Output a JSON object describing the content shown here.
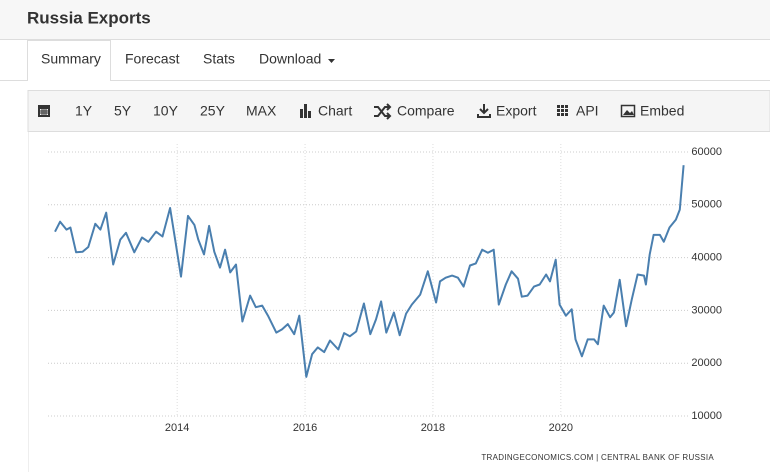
{
  "header": {
    "title": "Russia Exports"
  },
  "tabs": [
    "Summary",
    "Forecast",
    "Stats",
    "Download"
  ],
  "toolbar": [
    "1Y",
    "5Y",
    "10Y",
    "25Y",
    "MAX",
    "Chart",
    "Compare",
    "Export",
    "API",
    "Embed"
  ],
  "chart_data": {
    "type": "line",
    "source": "TRADINGECONOMICS.COM  |  CENTRAL BANK OF RUSSIA",
    "x": [
      2012.09,
      2012.17,
      2012.27,
      2012.33,
      2012.42,
      2012.52,
      2012.61,
      2012.72,
      2012.8,
      2012.89,
      2013.0,
      2013.11,
      2013.2,
      2013.33,
      2013.45,
      2013.55,
      2013.67,
      2013.77,
      2013.89,
      2013.98,
      2014.06,
      2014.17,
      2014.27,
      2014.33,
      2014.42,
      2014.5,
      2014.58,
      2014.67,
      2014.75,
      2014.83,
      2014.92,
      2015.02,
      2015.14,
      2015.23,
      2015.33,
      2015.42,
      2015.55,
      2015.64,
      2015.73,
      2015.83,
      2015.91,
      2016.02,
      2016.11,
      2016.2,
      2016.3,
      2016.39,
      2016.52,
      2016.61,
      2016.7,
      2016.8,
      2016.92,
      2017.02,
      2017.11,
      2017.19,
      2017.27,
      2017.39,
      2017.48,
      2017.58,
      2017.67,
      2017.8,
      2017.92,
      2018.05,
      2018.11,
      2018.2,
      2018.3,
      2018.39,
      2018.48,
      2018.58,
      2018.67,
      2018.77,
      2018.86,
      2018.95,
      2019.03,
      2019.14,
      2019.23,
      2019.33,
      2019.39,
      2019.48,
      2019.58,
      2019.67,
      2019.77,
      2019.83,
      2019.92,
      2019.98,
      2020.08,
      2020.17,
      2020.23,
      2020.33,
      2020.42,
      2020.52,
      2020.58,
      2020.67,
      2020.77,
      2020.83,
      2020.92,
      2021.02,
      2021.11,
      2021.2,
      2021.3,
      2021.33,
      2021.39,
      2021.45,
      2021.55,
      2021.61,
      2021.7,
      2021.8,
      2021.86,
      2021.92
    ],
    "series": [
      {
        "name": "Exports",
        "color": "#4a7faf",
        "values": [
          44900,
          46800,
          45300,
          45700,
          41000,
          41100,
          42000,
          46400,
          45300,
          48500,
          38700,
          43400,
          44700,
          41000,
          43800,
          43000,
          44900,
          44000,
          49400,
          42500,
          36400,
          47900,
          46200,
          43400,
          40600,
          46000,
          41100,
          38100,
          41500,
          37200,
          38700,
          27900,
          32800,
          30600,
          30900,
          29000,
          25800,
          26400,
          27400,
          25500,
          29000,
          17400,
          21700,
          23000,
          22100,
          24300,
          22600,
          25700,
          25100,
          26000,
          31300,
          25500,
          28300,
          31700,
          25800,
          29600,
          25300,
          29400,
          31100,
          33000,
          37400,
          31500,
          35500,
          36200,
          36600,
          36200,
          34500,
          38500,
          38900,
          41500,
          40900,
          41500,
          31100,
          34900,
          37400,
          36000,
          32600,
          32800,
          34500,
          34900,
          36800,
          35500,
          39600,
          31100,
          29000,
          30200,
          24500,
          21300,
          24500,
          24500,
          23600,
          30900,
          28700,
          29600,
          35800,
          27000,
          32100,
          36800,
          36600,
          34900,
          40600,
          44300,
          44300,
          43000,
          45700,
          47200,
          49100,
          57500
        ]
      }
    ],
    "xlim": [
      2011.98,
      2022.02
    ],
    "xticks": [
      2014,
      2016,
      2018,
      2020
    ],
    "ylim": [
      10000,
      60000
    ],
    "yticks": [
      10000,
      20000,
      30000,
      40000,
      50000,
      60000
    ],
    "grid": true
  }
}
